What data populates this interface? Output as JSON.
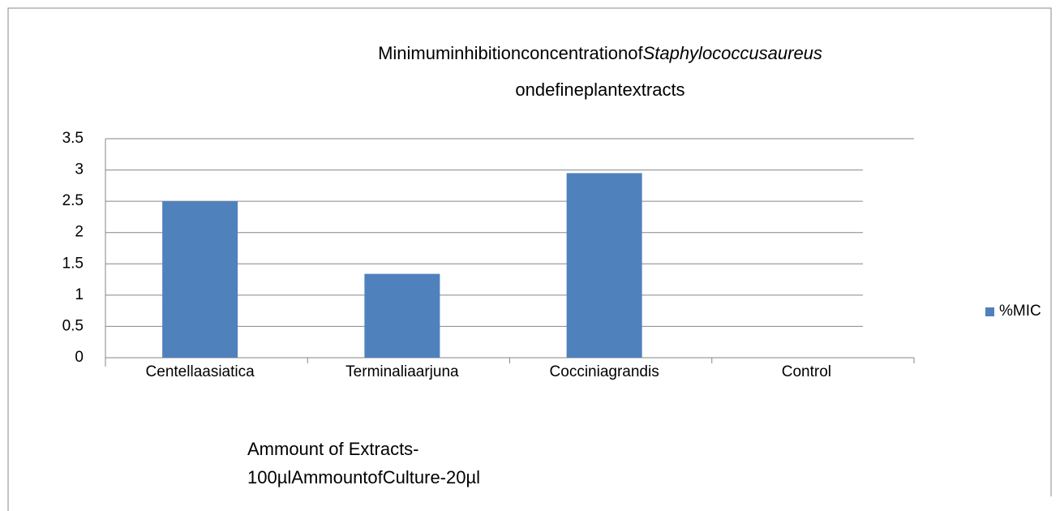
{
  "chart_data": {
    "type": "bar",
    "title": {
      "line1": "Minimuminhibitionconcentrationof",
      "line1_italic": "Staphylococcusaureus",
      "line2": "ondefineplantextracts"
    },
    "categories": [
      "Centellaasiatica",
      "Terminaliaarjuna",
      "Cocciniagrandis",
      "Control"
    ],
    "series": [
      {
        "name": "%MIC",
        "color": "#4f81bd",
        "values": [
          2.5,
          1.34,
          2.95,
          0
        ]
      }
    ],
    "ylim": [
      0,
      3.5
    ],
    "yticks": [
      0,
      0.5,
      1,
      1.5,
      2,
      2.5,
      3,
      3.5
    ],
    "grid": true,
    "xlabel": [
      "Ammount of Extracts-",
      "100µlAmmountofCulture-20µl"
    ],
    "legend": "right"
  }
}
